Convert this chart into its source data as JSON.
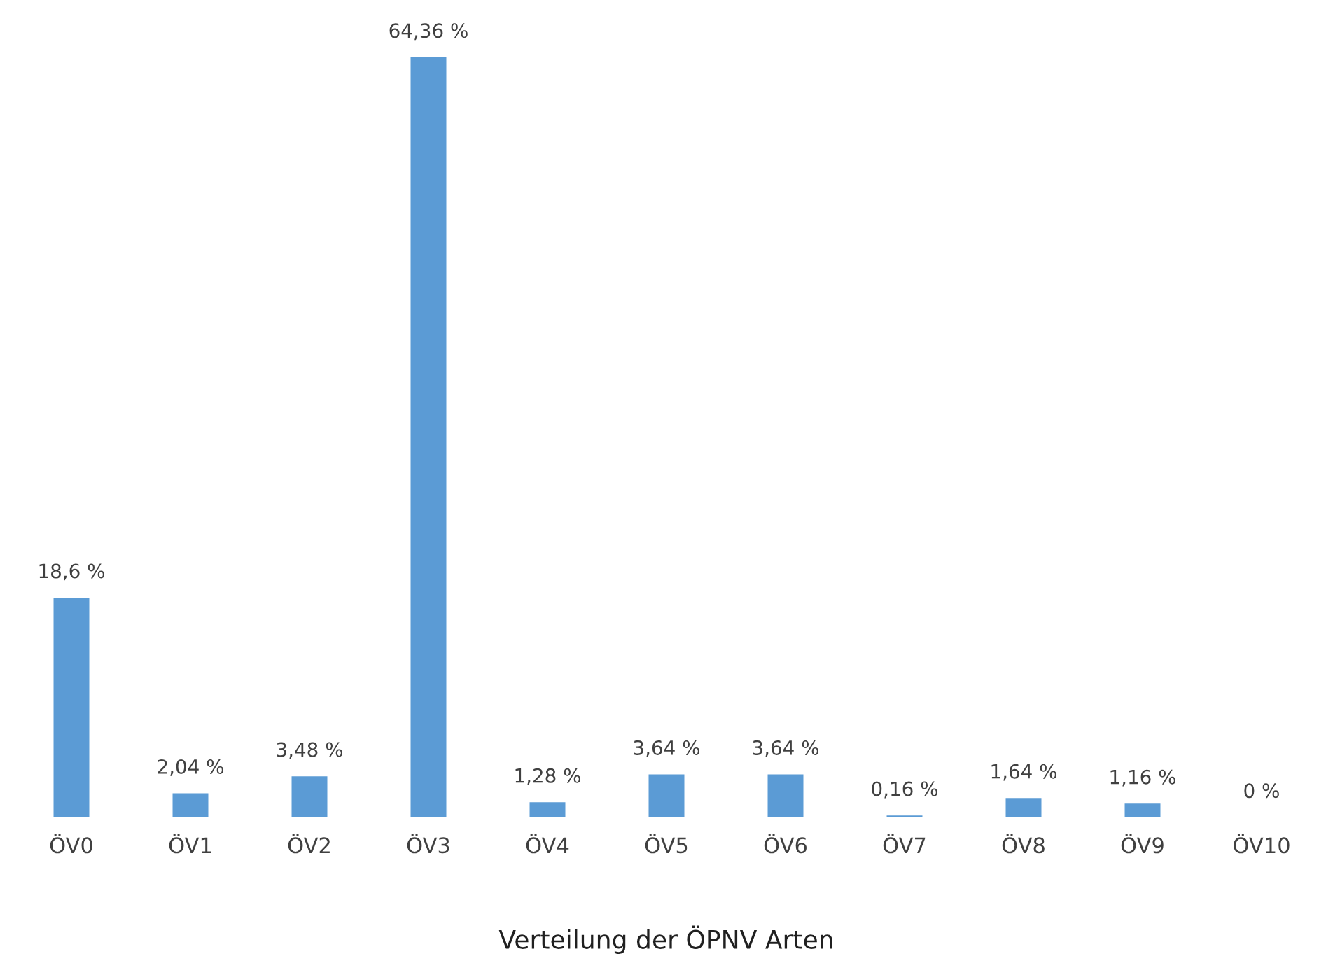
{
  "chart_data": {
    "type": "bar",
    "xlabel": "Verteilung der ÖPNV Arten",
    "categories": [
      "ÖV0",
      "ÖV1",
      "ÖV2",
      "ÖV3",
      "ÖV4",
      "ÖV5",
      "ÖV6",
      "ÖV7",
      "ÖV8",
      "ÖV9",
      "ÖV10"
    ],
    "values": [
      18.6,
      2.04,
      3.48,
      64.36,
      1.28,
      3.64,
      3.64,
      0.16,
      1.64,
      1.16,
      0
    ],
    "value_labels": [
      "18,6 %",
      "2,04 %",
      "3,48 %",
      "64,36 %",
      "1,28 %",
      "3,64 %",
      "3,64 %",
      "0,16 %",
      "1,64 %",
      "1,16 %",
      "0 %"
    ],
    "color": "#5b9bd5",
    "grid": false,
    "legend": false
  }
}
